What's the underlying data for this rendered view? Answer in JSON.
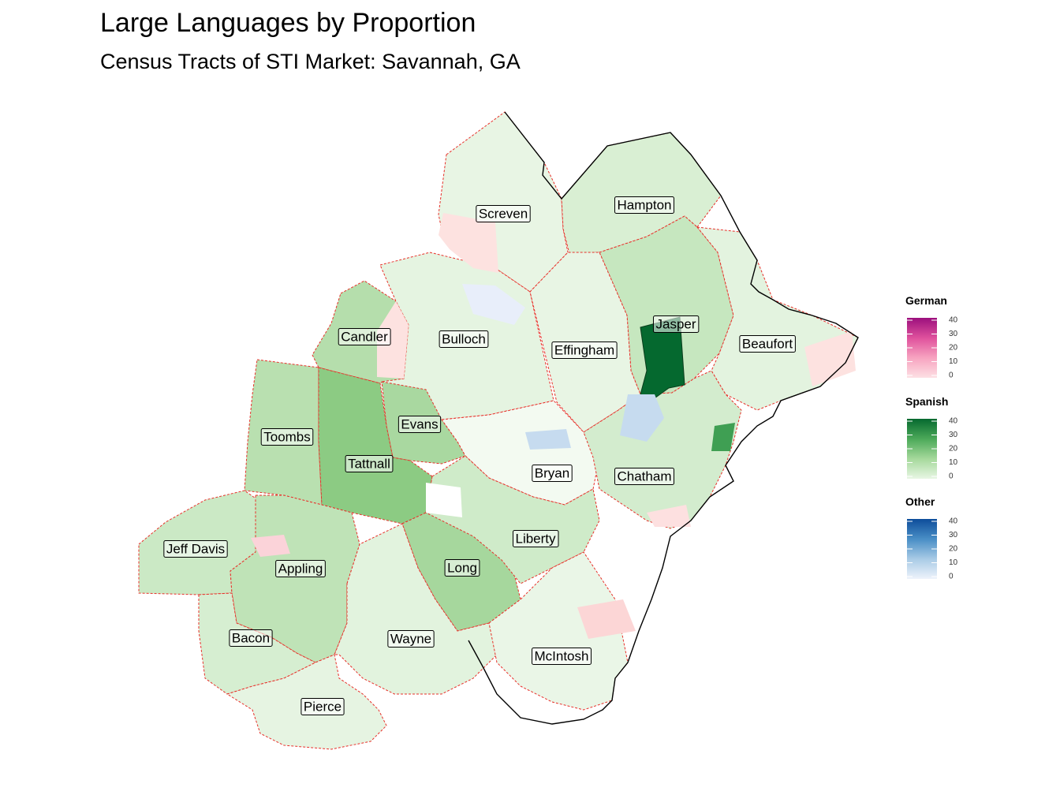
{
  "title": "Large Languages by Proportion",
  "subtitle": "Census Tracts of STI Market: Savannah, GA",
  "counties": [
    {
      "name": "Screven",
      "fill": "#e8f5e4"
    },
    {
      "name": "Hampton",
      "fill": "#d9efd3"
    },
    {
      "name": "Jasper",
      "fill": "#c6e7bf"
    },
    {
      "name": "Beaufort",
      "fill": "#e3f3df"
    },
    {
      "name": "Candler",
      "fill": "#b5deac"
    },
    {
      "name": "Bulloch",
      "fill": "#e5f4e1"
    },
    {
      "name": "Effingham",
      "fill": "#e8f5e4"
    },
    {
      "name": "Toombs",
      "fill": "#b9e0b0"
    },
    {
      "name": "Evans",
      "fill": "#a9d8a0"
    },
    {
      "name": "Tattnall",
      "fill": "#8ccb83"
    },
    {
      "name": "Bryan",
      "fill": "#f3faf1"
    },
    {
      "name": "Chatham",
      "fill": "#d3ecce"
    },
    {
      "name": "Jeff Davis",
      "fill": "#cbe9c5"
    },
    {
      "name": "Appling",
      "fill": "#bfe3b7"
    },
    {
      "name": "Long",
      "fill": "#a6d79d"
    },
    {
      "name": "Liberty",
      "fill": "#cfebc9"
    },
    {
      "name": "Bacon",
      "fill": "#d6eed1"
    },
    {
      "name": "Wayne",
      "fill": "#e2f3de"
    },
    {
      "name": "McIntosh",
      "fill": "#eaf6e7"
    },
    {
      "name": "Pierce",
      "fill": "#e6f4e2"
    }
  ],
  "legends": [
    {
      "title": "German",
      "colors": [
        "#fde0e4",
        "#f7a4c0",
        "#e0529d",
        "#9c0f7d"
      ],
      "ticks": [
        "40",
        "30",
        "20",
        "10",
        "0"
      ]
    },
    {
      "title": "Spanish",
      "colors": [
        "#e8f6e4",
        "#a6d99c",
        "#4daa5a",
        "#05692f"
      ],
      "ticks": [
        "40",
        "30",
        "20",
        "10",
        "0"
      ]
    },
    {
      "title": "Other",
      "colors": [
        "#eef3fb",
        "#a9cbe6",
        "#4a8fc6",
        "#0d4d9b"
      ],
      "ticks": [
        "40",
        "30",
        "20",
        "10",
        "0"
      ]
    }
  ]
}
